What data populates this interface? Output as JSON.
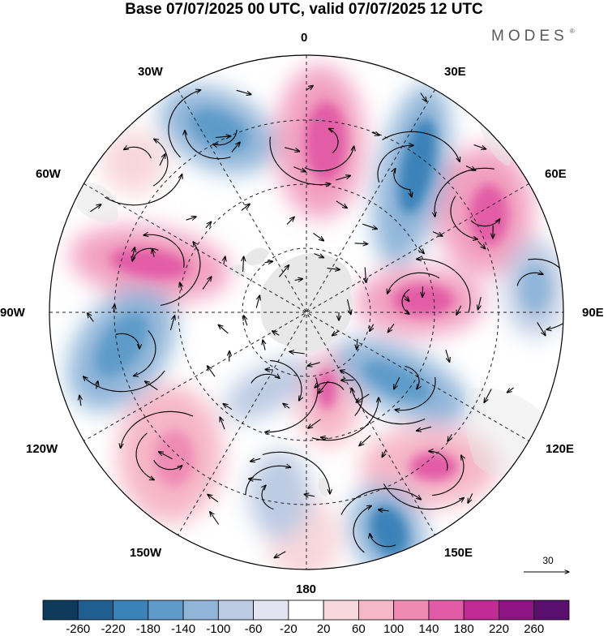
{
  "title": "Base 07/07/2025 00 UTC, valid 07/07/2025 12 UTC",
  "brand": "MODES",
  "brand_mark": "®",
  "longitude_labels": {
    "lon_0": "0",
    "lon_30e": "30E",
    "lon_60e": "60E",
    "lon_90e": "90E",
    "lon_120e": "120E",
    "lon_150e": "150E",
    "lon_180": "180",
    "lon_150w": "150W",
    "lon_120w": "120W",
    "lon_90w": "90W",
    "lon_60w": "60W",
    "lon_30w": "30W"
  },
  "reference_vector": {
    "label": "30"
  },
  "colorbar": {
    "labels": [
      "-260",
      "-220",
      "-180",
      "-140",
      "-100",
      "-60",
      "-20",
      "20",
      "60",
      "100",
      "140",
      "180",
      "220",
      "260"
    ],
    "colors": [
      "#0e3a5c",
      "#1f5e8f",
      "#3a82b8",
      "#5f9bc9",
      "#90b5d9",
      "#bccbe3",
      "#e4e4f0",
      "#ffffff",
      "#f8d7dc",
      "#f6b7c8",
      "#ef8ab3",
      "#e25ba6",
      "#c22a94",
      "#8e1483",
      "#5a0e6d"
    ]
  },
  "map": {
    "type": "south-polar-stereographic anomaly field with wind streamlines",
    "positive_color": "#e25ba6",
    "negative_color": "#3a82b8",
    "land_color": "#e6e6e6"
  }
}
